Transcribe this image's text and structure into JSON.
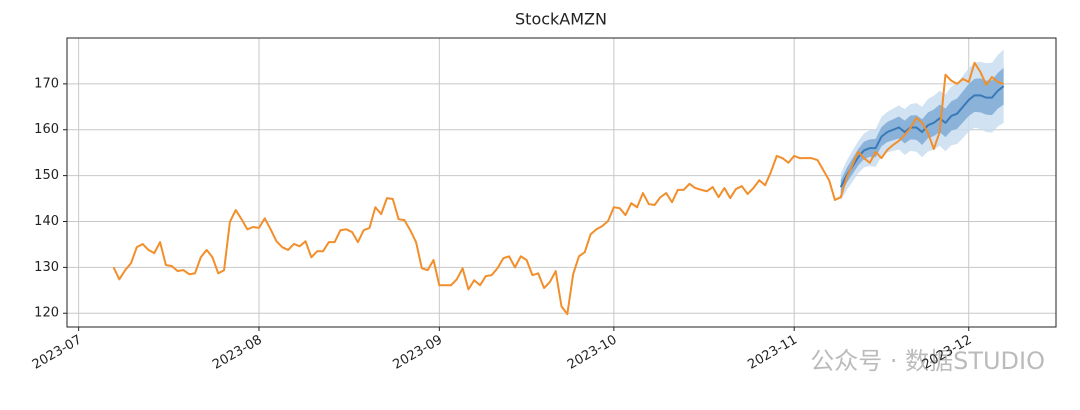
{
  "chart_data": {
    "type": "line",
    "title": "StockAMZN",
    "grid": true,
    "xlim": [
      "2023-06-29",
      "2023-12-16"
    ],
    "ylim": [
      117,
      180
    ],
    "xticks": [
      {
        "value": "2023-07-01",
        "label": "2023-07"
      },
      {
        "value": "2023-08-01",
        "label": "2023-08"
      },
      {
        "value": "2023-09-01",
        "label": "2023-09"
      },
      {
        "value": "2023-10-01",
        "label": "2023-10"
      },
      {
        "value": "2023-11-01",
        "label": "2023-11"
      },
      {
        "value": "2023-12-01",
        "label": "2023-12"
      }
    ],
    "yticks": [
      120,
      130,
      140,
      150,
      160,
      170
    ],
    "watermark": "公众号 · 数据STUDIO",
    "bands": [
      {
        "color": "#c6dbef",
        "x": [
          "2023-11-09",
          "2023-11-10",
          "2023-11-11",
          "2023-11-12",
          "2023-11-13",
          "2023-11-14",
          "2023-11-15",
          "2023-11-16",
          "2023-11-17",
          "2023-11-18",
          "2023-11-19",
          "2023-11-20",
          "2023-11-21",
          "2023-11-22",
          "2023-11-23",
          "2023-11-24",
          "2023-11-25",
          "2023-11-26",
          "2023-11-27",
          "2023-11-28",
          "2023-11-29",
          "2023-11-30",
          "2023-12-01",
          "2023-12-02",
          "2023-12-03",
          "2023-12-04",
          "2023-12-05",
          "2023-12-06",
          "2023-12-07"
        ],
        "lower": [
          144.5,
          146.8,
          148.6,
          150.5,
          151.8,
          152.1,
          151.9,
          154.2,
          155.1,
          155.4,
          155.7,
          154.5,
          155.4,
          155.2,
          154.0,
          155.3,
          155.6,
          156.5,
          155.3,
          156.6,
          156.9,
          158.2,
          159.6,
          160.4,
          160.2,
          159.5,
          159.4,
          160.7,
          161.5
        ],
        "upper": [
          150.5,
          153.2,
          155.4,
          157.5,
          159.2,
          159.9,
          160.1,
          162.8,
          163.9,
          164.6,
          165.3,
          164.5,
          165.6,
          165.8,
          165.0,
          166.7,
          167.4,
          168.5,
          167.7,
          169.4,
          170.1,
          171.8,
          173.4,
          174.6,
          174.8,
          174.5,
          174.6,
          176.3,
          177.5
        ]
      },
      {
        "color": "#79a7d3",
        "x": [
          "2023-11-09",
          "2023-11-10",
          "2023-11-11",
          "2023-11-12",
          "2023-11-13",
          "2023-11-14",
          "2023-11-15",
          "2023-11-16",
          "2023-11-17",
          "2023-11-18",
          "2023-11-19",
          "2023-11-20",
          "2023-11-21",
          "2023-11-22",
          "2023-11-23",
          "2023-11-24",
          "2023-11-25",
          "2023-11-26",
          "2023-11-27",
          "2023-11-28",
          "2023-11-29",
          "2023-11-30",
          "2023-12-01",
          "2023-12-02",
          "2023-12-03",
          "2023-12-04",
          "2023-12-05",
          "2023-12-06",
          "2023-12-07"
        ],
        "lower": [
          146.0,
          148.4,
          150.3,
          152.2,
          153.6,
          154.1,
          154.0,
          156.4,
          157.3,
          157.7,
          158.1,
          157.0,
          157.9,
          157.8,
          156.7,
          158.2,
          158.6,
          159.5,
          158.4,
          159.8,
          160.2,
          161.6,
          163.0,
          163.9,
          163.8,
          163.3,
          163.2,
          164.6,
          165.5
        ],
        "upper": [
          149.0,
          151.6,
          153.7,
          155.8,
          157.4,
          157.9,
          158.0,
          160.6,
          161.7,
          162.3,
          162.9,
          162.0,
          163.1,
          163.2,
          162.3,
          163.8,
          164.4,
          165.5,
          164.6,
          166.2,
          166.8,
          168.4,
          170.0,
          171.1,
          171.2,
          170.7,
          170.8,
          172.4,
          173.5
        ]
      }
    ],
    "series": [
      {
        "color": "#3a7ab8",
        "x": [
          "2023-11-09",
          "2023-11-10",
          "2023-11-11",
          "2023-11-12",
          "2023-11-13",
          "2023-11-14",
          "2023-11-15",
          "2023-11-16",
          "2023-11-17",
          "2023-11-18",
          "2023-11-19",
          "2023-11-20",
          "2023-11-21",
          "2023-11-22",
          "2023-11-23",
          "2023-11-24",
          "2023-11-25",
          "2023-11-26",
          "2023-11-27",
          "2023-11-28",
          "2023-11-29",
          "2023-11-30",
          "2023-12-01",
          "2023-12-02",
          "2023-12-03",
          "2023-12-04",
          "2023-12-05",
          "2023-12-06",
          "2023-12-07"
        ],
        "values": [
          147.5,
          150,
          152,
          154,
          155.5,
          156,
          156,
          158.5,
          159.5,
          160,
          160.5,
          159.5,
          160.5,
          160.5,
          159.5,
          161,
          161.5,
          162.5,
          161.5,
          163,
          163.5,
          165,
          166.5,
          167.5,
          167.5,
          167,
          167,
          168.5,
          169.5
        ]
      },
      {
        "color": "#f28e2b",
        "x": [
          "2023-07-07",
          "2023-07-08",
          "2023-07-09",
          "2023-07-10",
          "2023-07-11",
          "2023-07-12",
          "2023-07-13",
          "2023-07-14",
          "2023-07-15",
          "2023-07-16",
          "2023-07-17",
          "2023-07-18",
          "2023-07-19",
          "2023-07-20",
          "2023-07-21",
          "2023-07-22",
          "2023-07-23",
          "2023-07-24",
          "2023-07-25",
          "2023-07-26",
          "2023-07-27",
          "2023-07-28",
          "2023-07-29",
          "2023-07-30",
          "2023-07-31",
          "2023-08-01",
          "2023-08-02",
          "2023-08-03",
          "2023-08-04",
          "2023-08-05",
          "2023-08-06",
          "2023-08-07",
          "2023-08-08",
          "2023-08-09",
          "2023-08-10",
          "2023-08-11",
          "2023-08-12",
          "2023-08-13",
          "2023-08-14",
          "2023-08-15",
          "2023-08-16",
          "2023-08-17",
          "2023-08-18",
          "2023-08-19",
          "2023-08-20",
          "2023-08-21",
          "2023-08-22",
          "2023-08-23",
          "2023-08-24",
          "2023-08-25",
          "2023-08-26",
          "2023-08-27",
          "2023-08-28",
          "2023-08-29",
          "2023-08-30",
          "2023-08-31",
          "2023-09-01",
          "2023-09-02",
          "2023-09-03",
          "2023-09-04",
          "2023-09-05",
          "2023-09-06",
          "2023-09-07",
          "2023-09-08",
          "2023-09-09",
          "2023-09-10",
          "2023-09-11",
          "2023-09-12",
          "2023-09-13",
          "2023-09-14",
          "2023-09-15",
          "2023-09-16",
          "2023-09-17",
          "2023-09-18",
          "2023-09-19",
          "2023-09-20",
          "2023-09-21",
          "2023-09-22",
          "2023-09-23",
          "2023-09-24",
          "2023-09-25",
          "2023-09-26",
          "2023-09-27",
          "2023-09-28",
          "2023-09-29",
          "2023-09-30",
          "2023-10-01",
          "2023-10-02",
          "2023-10-03",
          "2023-10-04",
          "2023-10-05",
          "2023-10-06",
          "2023-10-07",
          "2023-10-08",
          "2023-10-09",
          "2023-10-10",
          "2023-10-11",
          "2023-10-12",
          "2023-10-13",
          "2023-10-14",
          "2023-10-15",
          "2023-10-16",
          "2023-10-17",
          "2023-10-18",
          "2023-10-19",
          "2023-10-20",
          "2023-10-21",
          "2023-10-22",
          "2023-10-23",
          "2023-10-24",
          "2023-10-25",
          "2023-10-26",
          "2023-10-27",
          "2023-10-28",
          "2023-10-29",
          "2023-10-30",
          "2023-10-31",
          "2023-11-01",
          "2023-11-02",
          "2023-11-03",
          "2023-11-04",
          "2023-11-05",
          "2023-11-06",
          "2023-11-07",
          "2023-11-08",
          "2023-11-09",
          "2023-11-10",
          "2023-11-11",
          "2023-11-12",
          "2023-11-13",
          "2023-11-14",
          "2023-11-15",
          "2023-11-16",
          "2023-11-17",
          "2023-11-18",
          "2023-11-19",
          "2023-11-20",
          "2023-11-21",
          "2023-11-22",
          "2023-11-23",
          "2023-11-24",
          "2023-11-25",
          "2023-11-26",
          "2023-11-27",
          "2023-11-28",
          "2023-11-29",
          "2023-11-30",
          "2023-12-01",
          "2023-12-02",
          "2023-12-03",
          "2023-12-04",
          "2023-12-05",
          "2023-12-06",
          "2023-12-07"
        ],
        "values": [
          130.0,
          127.4,
          129.4,
          130.9,
          134.4,
          135.1,
          133.8,
          133.1,
          135.5,
          130.5,
          130.3,
          129.2,
          129.4,
          128.5,
          128.7,
          132.2,
          133.8,
          132.2,
          128.7,
          129.4,
          139.9,
          142.5,
          140.5,
          138.3,
          138.8,
          138.6,
          140.7,
          138.3,
          135.7,
          134.4,
          133.8,
          135.1,
          134.6,
          135.7,
          132.2,
          133.5,
          133.5,
          135.5,
          135.5,
          138.1,
          138.3,
          137.7,
          135.5,
          138.1,
          138.6,
          143.1,
          141.6,
          145.1,
          144.9,
          140.5,
          140.3,
          138.1,
          135.5,
          129.8,
          129.4,
          131.6,
          126.1,
          126.1,
          126.1,
          127.4,
          129.8,
          125.2,
          127.2,
          126.1,
          128.1,
          128.3,
          129.8,
          132.0,
          132.4,
          130.0,
          132.4,
          131.6,
          128.3,
          128.7,
          125.5,
          126.8,
          129.2,
          121.5,
          119.8,
          128.5,
          132.4,
          133.3,
          137.2,
          138.3,
          139.0,
          140.1,
          143.1,
          142.9,
          141.4,
          144.0,
          143.1,
          146.2,
          143.8,
          143.6,
          145.3,
          146.2,
          144.2,
          146.9,
          146.9,
          148.2,
          147.3,
          146.9,
          146.6,
          147.5,
          145.3,
          147.3,
          145.1,
          147.1,
          147.7,
          146.0,
          147.3,
          149.0,
          147.9,
          150.8,
          154.3,
          153.8,
          152.8,
          154.3,
          153.8,
          153.8,
          153.8,
          153.4,
          151.2,
          149.0,
          144.7,
          145.3,
          149.5,
          152.3,
          155.2,
          153.8,
          152.8,
          155.2,
          153.8,
          155.6,
          156.7,
          157.6,
          158.9,
          160.4,
          162.6,
          161.5,
          159.3,
          155.8,
          159.5,
          172.0,
          170.7,
          170.0,
          171.1,
          170.4,
          174.6,
          172.6,
          169.8,
          171.5,
          170.4,
          170.0
        ]
      }
    ]
  }
}
